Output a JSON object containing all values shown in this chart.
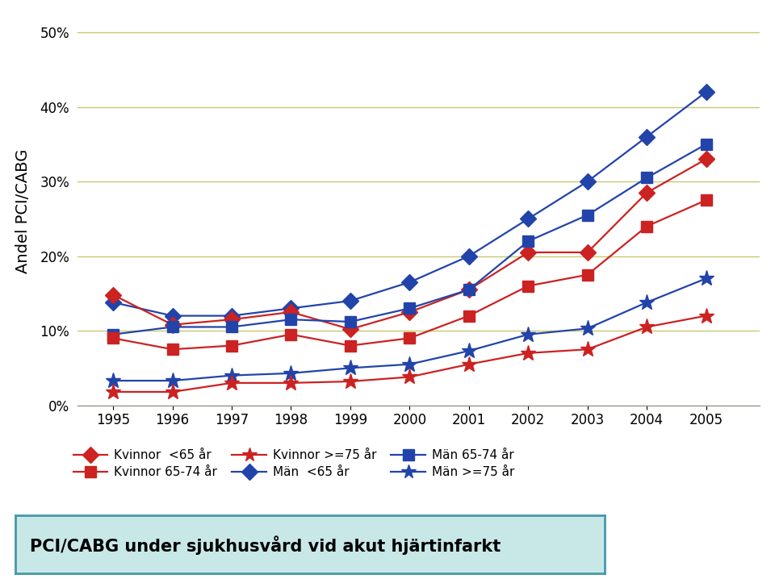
{
  "years": [
    1995,
    1996,
    1997,
    1998,
    1999,
    2000,
    2001,
    2002,
    2003,
    2004,
    2005
  ],
  "kvinnor_lt65": [
    0.148,
    0.108,
    0.115,
    0.125,
    0.102,
    0.125,
    0.155,
    0.205,
    0.205,
    0.285,
    0.33
  ],
  "man_lt65": [
    0.138,
    0.12,
    0.12,
    0.13,
    0.14,
    0.165,
    0.2,
    0.25,
    0.3,
    0.36,
    0.42
  ],
  "kvinnor_65_74": [
    0.09,
    0.075,
    0.08,
    0.095,
    0.08,
    0.09,
    0.12,
    0.16,
    0.175,
    0.24,
    0.275
  ],
  "man_65_74": [
    0.095,
    0.105,
    0.105,
    0.115,
    0.112,
    0.13,
    0.155,
    0.22,
    0.255,
    0.305,
    0.35
  ],
  "kvinnor_ge75": [
    0.018,
    0.018,
    0.03,
    0.03,
    0.032,
    0.038,
    0.055,
    0.07,
    0.075,
    0.105,
    0.12
  ],
  "man_ge75": [
    0.033,
    0.033,
    0.04,
    0.043,
    0.05,
    0.055,
    0.073,
    0.095,
    0.103,
    0.138,
    0.17
  ],
  "blue_color": "#2244aa",
  "red_color": "#cc2222",
  "background_caption": "#c8e8e8",
  "caption_border": "#4499aa",
  "ylabel": "Andel PCI/CABG",
  "caption": "PCI/CABG under sjukhusvård vid akut hjärtinfarkt",
  "yticks": [
    0.0,
    0.1,
    0.2,
    0.3,
    0.4,
    0.5
  ],
  "ytick_labels": [
    "0%",
    "10%",
    "20%",
    "30%",
    "40%",
    "50%"
  ],
  "ylim": [
    0,
    0.52
  ],
  "xlim": [
    1994.4,
    2005.9
  ],
  "grid_color": "#c8c870",
  "lw": 1.6,
  "ms_diamond": 10,
  "ms_square": 10,
  "ms_star": 14,
  "tick_fontsize": 12,
  "ylabel_fontsize": 14,
  "legend_fontsize": 11,
  "caption_fontsize": 15
}
